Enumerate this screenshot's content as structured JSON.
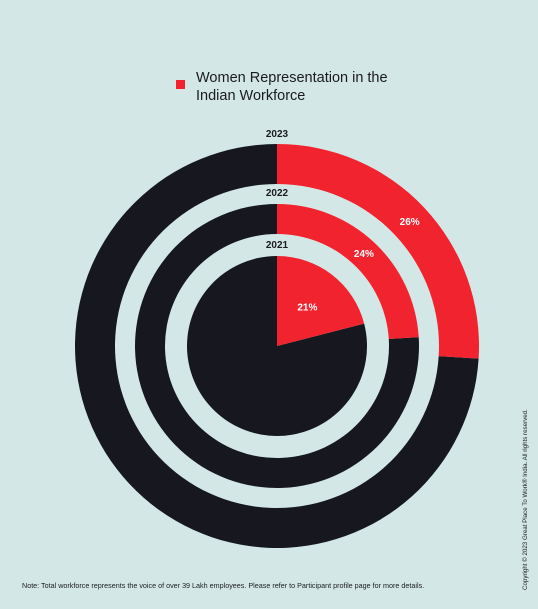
{
  "legend": {
    "label": "Women Representation in the Indian Workforce",
    "color": "#f0232f"
  },
  "chart_data": {
    "type": "pie",
    "title": "",
    "series": [
      {
        "name": "2023",
        "value": 26,
        "label": "26%"
      },
      {
        "name": "2022",
        "value": 24,
        "label": "24%"
      },
      {
        "name": "2021",
        "value": 21,
        "label": "21%"
      }
    ],
    "colors": {
      "highlight": "#f0232f",
      "remainder": "#17181f",
      "background": "#d3e8e6"
    }
  },
  "footer": {
    "note": "Note: Total workforce represents the voice of over 39 Lakh employees. Please refer to Participant profile page for more details.",
    "copyright": "Copyright © 2023 Great Place To Work® India. All rights reserved."
  }
}
